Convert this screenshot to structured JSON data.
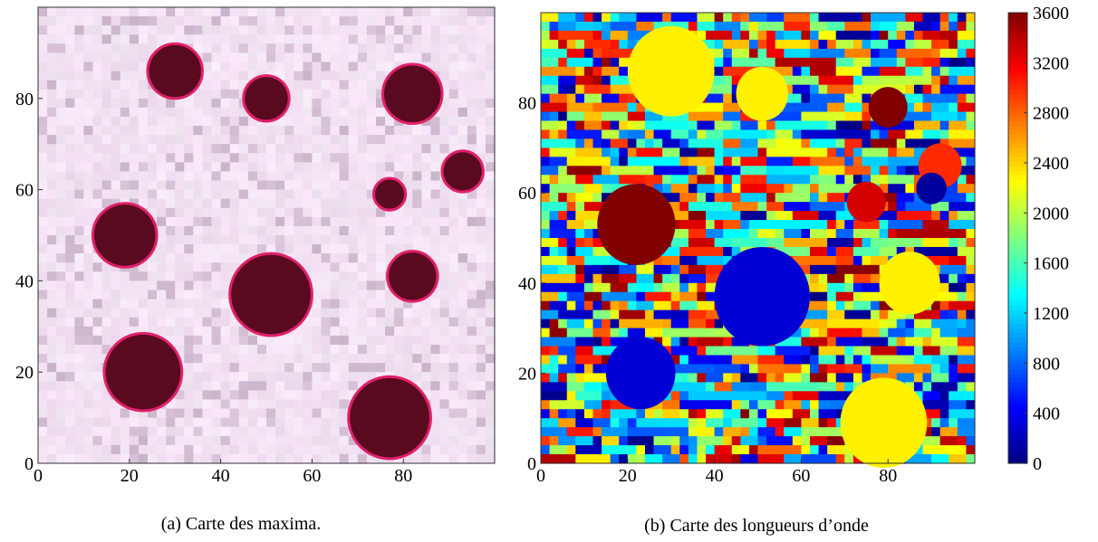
{
  "chart_data": [
    {
      "type": "heatmap",
      "caption": "(a) Carte des maxima.",
      "xlim": [
        0,
        100
      ],
      "ylim": [
        0,
        100
      ],
      "xticks": [
        0,
        20,
        40,
        60,
        80
      ],
      "yticks": [
        0,
        20,
        40,
        60,
        80
      ],
      "color": "#5a0a1e",
      "spots": {
        "x": [
          30,
          50,
          82,
          93,
          77,
          19,
          51,
          82,
          23,
          77
        ],
        "y": [
          86,
          80,
          81,
          64,
          59,
          50,
          37,
          41,
          20,
          10
        ],
        "size": [
          6,
          5,
          6.5,
          4.5,
          3.5,
          7,
          9,
          5.5,
          8.5,
          9
        ]
      }
    },
    {
      "type": "heatmap",
      "caption": "(b) Carte des longueurs d’onde",
      "xlim": [
        0,
        100
      ],
      "ylim": [
        0,
        100
      ],
      "xticks": [
        0,
        20,
        40,
        60,
        80
      ],
      "yticks": [
        0,
        20,
        40,
        60,
        80
      ],
      "clim": [
        0,
        3600
      ],
      "cticks": [
        0,
        400,
        800,
        1200,
        1600,
        2000,
        2400,
        2800,
        3200,
        3600
      ],
      "colormap": "jet",
      "spots": {
        "x": [
          30,
          51,
          80,
          92,
          90,
          75,
          22,
          51,
          85,
          23,
          79
        ],
        "y": [
          87,
          82,
          79,
          66,
          61,
          58,
          53,
          37,
          40,
          20,
          9
        ],
        "size": [
          10,
          6,
          4.5,
          5,
          3.5,
          4.5,
          9,
          11,
          7,
          8,
          10
        ],
        "values": [
          2300,
          2300,
          3600,
          3000,
          100,
          3300,
          3600,
          300,
          2300,
          300,
          2300
        ]
      }
    }
  ]
}
